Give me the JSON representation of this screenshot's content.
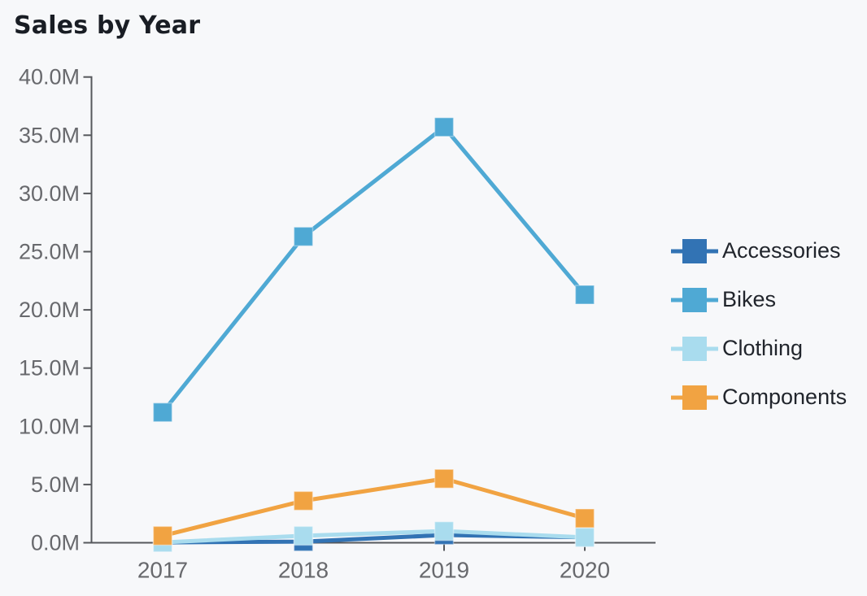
{
  "chart": {
    "title": "Sales by Year"
  },
  "colors": {
    "background": "#f7f8fa",
    "title_text": "#191d24",
    "axis_text": "#68696d",
    "axis_line": "#56585c",
    "accessories": "#3273b4",
    "bikes": "#4fa9d4",
    "clothing": "#a9dcee",
    "components": "#f1a342"
  },
  "chart_data": {
    "type": "line",
    "title": "Sales by Year",
    "categories": [
      "2017",
      "2018",
      "2019",
      "2020"
    ],
    "unit": "millions",
    "marker": "square",
    "grid": false,
    "legend_position": "right",
    "xlabel": "",
    "ylabel": "",
    "ylim": [
      0,
      40
    ],
    "ytick_step": 5,
    "ytick_labels": [
      "0.0M",
      "5.0M",
      "10.0M",
      "15.0M",
      "20.0M",
      "25.0M",
      "30.0M",
      "35.0M",
      "40.0M"
    ],
    "series": [
      {
        "name": "Accessories",
        "color": "#3273b4",
        "values": [
          0.03,
          0.1,
          0.66,
          0.47
        ]
      },
      {
        "name": "Bikes",
        "color": "#4fa9d4",
        "values": [
          11.2,
          26.3,
          35.7,
          21.3
        ]
      },
      {
        "name": "Clothing",
        "color": "#a9dcee",
        "values": [
          0.03,
          0.6,
          1.0,
          0.46
        ]
      },
      {
        "name": "Components",
        "color": "#f1a342",
        "values": [
          0.6,
          3.6,
          5.5,
          2.1
        ]
      }
    ]
  }
}
